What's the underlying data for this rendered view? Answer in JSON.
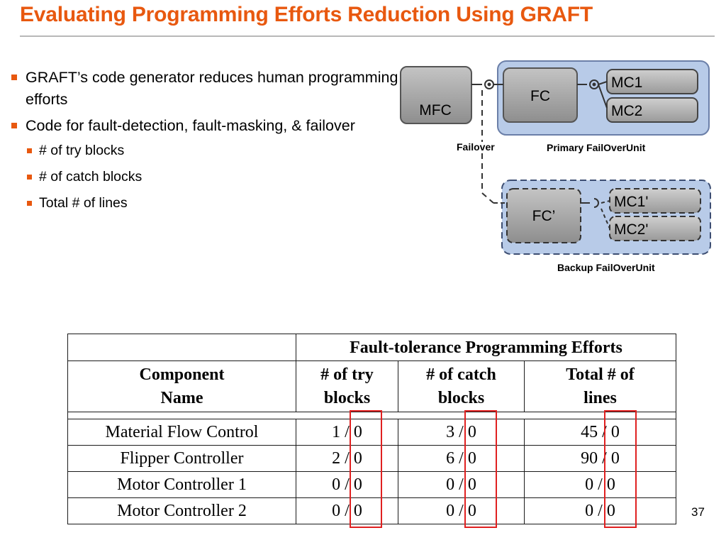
{
  "slide": {
    "title": "Evaluating Programming Efforts Reduction Using GRAFT",
    "page_number": "37"
  },
  "bullets": [
    {
      "level": 1,
      "text": "GRAFT’s code generator reduces human programming efforts"
    },
    {
      "level": 1,
      "text": "Code for fault-detection, fault-masking, & failover"
    },
    {
      "level": 2,
      "text": "# of try blocks"
    },
    {
      "level": 2,
      "text": "# of catch blocks"
    },
    {
      "level": 2,
      "text": "Total # of lines"
    }
  ],
  "diagram": {
    "mfc": "MFC",
    "fc": "FC",
    "mc1": "MC1",
    "mc2": "MC2",
    "failover": "Failover",
    "primary_unit": "Primary FailOverUnit",
    "fc_backup": "FC’",
    "mc1_backup": "MC1'",
    "mc2_backup": "MC2'",
    "backup_unit": "Backup FailOverUnit",
    "colors": {
      "unit_fill": "#b8cbe8",
      "unit_stroke": "#6b7fa8",
      "box_fill": "#a8a8a8"
    }
  },
  "table": {
    "group_header": "Fault-tolerance Programming Efforts",
    "columns": {
      "name": "Component Name",
      "try": "# of try blocks",
      "catch": "# of catch blocks",
      "lines": "Total # of lines"
    },
    "rows": [
      {
        "name": "Material Flow Control",
        "try": "1 / 0",
        "catch": "3 / 0",
        "lines": "45 / 0"
      },
      {
        "name": "Flipper Controller",
        "try": "2 / 0",
        "catch": "6 / 0",
        "lines": "90 / 0"
      },
      {
        "name": "Motor Controller 1",
        "try": "0 / 0",
        "catch": "0 / 0",
        "lines": "0 / 0"
      },
      {
        "name": "Motor Controller 2",
        "try": "0 / 0",
        "catch": "0 / 0",
        "lines": "0 / 0"
      }
    ],
    "highlight_color": "#e02020"
  }
}
